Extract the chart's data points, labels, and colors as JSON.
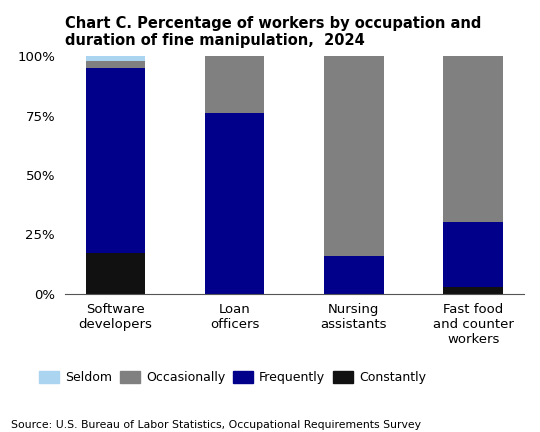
{
  "title": "Chart C. Percentage of workers by occupation and\nduration of fine manipulation,  2024",
  "categories": [
    "Software\ndevelopers",
    "Loan\nofficers",
    "Nursing\nassistants",
    "Fast food\nand counter\nworkers"
  ],
  "series": {
    "Seldom": [
      2,
      0,
      0,
      0
    ],
    "Occasionally": [
      3,
      24,
      84,
      70
    ],
    "Frequently": [
      78,
      76,
      16,
      27
    ],
    "Constantly": [
      17,
      0,
      0,
      3
    ]
  },
  "colors": {
    "Seldom": "#aad4f0",
    "Occasionally": "#808080",
    "Frequently": "#00008B",
    "Constantly": "#111111"
  },
  "order": [
    "Constantly",
    "Frequently",
    "Occasionally",
    "Seldom"
  ],
  "ylim": [
    0,
    100
  ],
  "yticks": [
    0,
    25,
    50,
    75,
    100
  ],
  "ytick_labels": [
    "0%",
    "25%",
    "50%",
    "75%",
    "100%"
  ],
  "source": "Source: U.S. Bureau of Labor Statistics, Occupational Requirements Survey",
  "bar_width": 0.5,
  "legend_order": [
    "Seldom",
    "Occasionally",
    "Frequently",
    "Constantly"
  ]
}
